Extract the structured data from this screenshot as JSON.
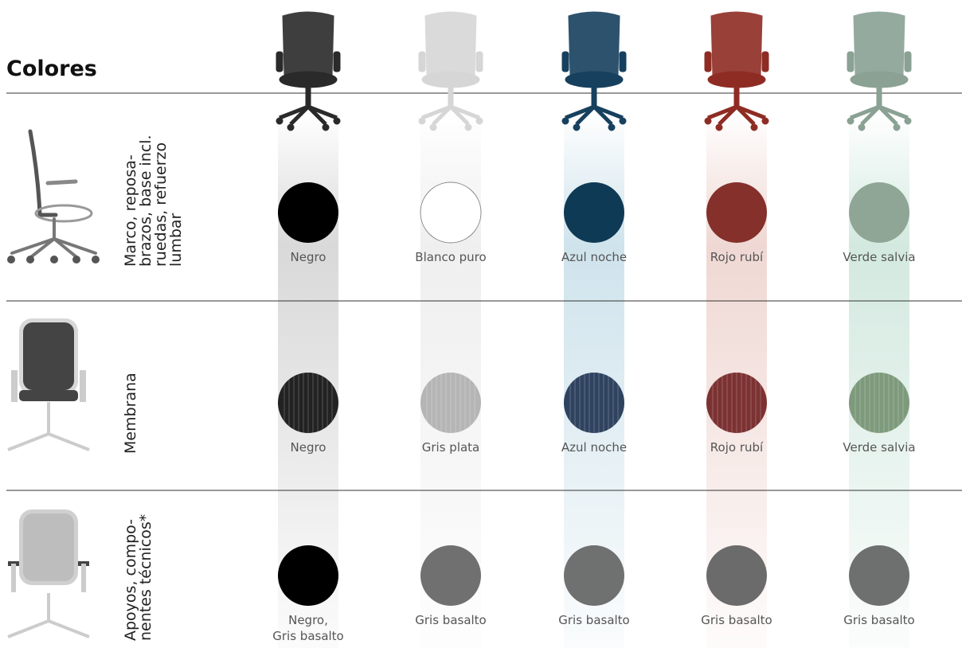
{
  "title": "Colores",
  "columns": [
    {
      "chair_color": "#2a2a2a",
      "tint": "#d9d9d9"
    },
    {
      "chair_color": "#d6d6d6",
      "tint": "#efefef"
    },
    {
      "chair_color": "#17405e",
      "tint": "#cfe3ec"
    },
    {
      "chair_color": "#8e2c24",
      "tint": "#efd8d3"
    },
    {
      "chair_color": "#8aa194",
      "tint": "#d3e9e0"
    }
  ],
  "rows": [
    {
      "label": [
        "Marco, reposa-",
        "brazos, base incl.",
        "ruedas, refuerzo",
        "lumbar"
      ],
      "swatches": [
        {
          "name": "Negro",
          "color": "#000000"
        },
        {
          "name": "Blanco puro",
          "color": "#ffffff"
        },
        {
          "name": "Azul noche",
          "color": "#0f3a55"
        },
        {
          "name": "Rojo rubí",
          "color": "#85302b"
        },
        {
          "name": "Verde salvia",
          "color": "#8fa596"
        }
      ]
    },
    {
      "label": [
        "Membrana"
      ],
      "swatches": [
        {
          "name": "Negro",
          "color": "#222222"
        },
        {
          "name": "Gris plata",
          "color": "#b5b5b5"
        },
        {
          "name": "Azul noche",
          "color": "#2f4360"
        },
        {
          "name": "Rojo rubí",
          "color": "#7c3232"
        },
        {
          "name": "Verde salvia",
          "color": "#7e9a7c"
        }
      ]
    },
    {
      "label": [
        "Apoyos, compo-",
        "nentes técnicos*"
      ],
      "swatches": [
        {
          "name": [
            "Negro,",
            "Gris basalto"
          ],
          "color": "#000000"
        },
        {
          "name": "Gris basalto",
          "color": "#707070"
        },
        {
          "name": "Gris basalto",
          "color": "#6f7171"
        },
        {
          "name": "Gris basalto",
          "color": "#6c6b6b"
        },
        {
          "name": "Gris basalto",
          "color": "#6e706f"
        }
      ]
    }
  ]
}
